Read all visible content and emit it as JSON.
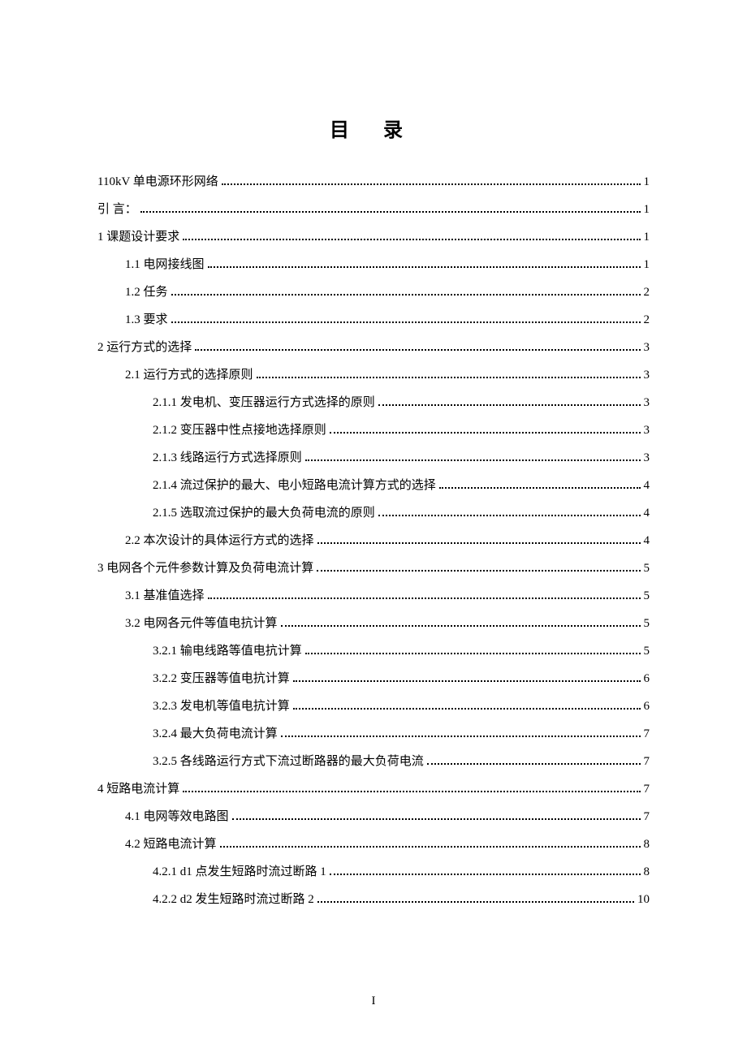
{
  "title": "目 录",
  "page_number": "I",
  "entries": [
    {
      "label": "110kV 单电源环形网络",
      "page": "1",
      "indent": 0
    },
    {
      "label": "引  言：",
      "page": "1",
      "indent": 0
    },
    {
      "label": "1  课题设计要求",
      "page": "1",
      "indent": 0
    },
    {
      "label": "1.1 电网接线图",
      "page": "1",
      "indent": 1
    },
    {
      "label": "1.2  任务",
      "page": "2",
      "indent": 1
    },
    {
      "label": "1.3  要求",
      "page": "2",
      "indent": 1
    },
    {
      "label": "2 运行方式的选择",
      "page": "3",
      "indent": 0
    },
    {
      "label": "2.1  运行方式的选择原则",
      "page": "3",
      "indent": 1
    },
    {
      "label": "2.1.1  发电机、变压器运行方式选择的原则",
      "page": "3",
      "indent": 2
    },
    {
      "label": "2.1.2  变压器中性点接地选择原则",
      "page": "3",
      "indent": 2
    },
    {
      "label": "2.1.3  线路运行方式选择原则",
      "page": "3",
      "indent": 2
    },
    {
      "label": "2.1.4  流过保护的最大、电小短路电流计算方式的选择",
      "page": "4",
      "indent": 2
    },
    {
      "label": "2.1.5  选取流过保护的最大负荷电流的原则",
      "page": "4",
      "indent": 2
    },
    {
      "label": "2.2  本次设计的具体运行方式的选择",
      "page": "4",
      "indent": 1
    },
    {
      "label": "3  电网各个元件参数计算及负荷电流计算",
      "page": "5",
      "indent": 0
    },
    {
      "label": "3.1 基准值选择",
      "page": "5",
      "indent": 1
    },
    {
      "label": "3.2 电网各元件等值电抗计算",
      "page": "5",
      "indent": 1
    },
    {
      "label": "3.2.1 输电线路等值电抗计算",
      "page": "5",
      "indent": 2
    },
    {
      "label": "3.2.2 变压器等值电抗计算",
      "page": "6",
      "indent": 2
    },
    {
      "label": "3.2.3 发电机等值电抗计算",
      "page": "6",
      "indent": 2
    },
    {
      "label": "3.2.4 最大负荷电流计算",
      "page": "7",
      "indent": 2
    },
    {
      "label": "3.2.5  各线路运行方式下流过断路器的最大负荷电流",
      "page": "7",
      "indent": 2
    },
    {
      "label": "4  短路电流计算",
      "page": "7",
      "indent": 0
    },
    {
      "label": "4.1 电网等效电路图",
      "page": "7",
      "indent": 1
    },
    {
      "label": "4.2 短路电流计算",
      "page": "8",
      "indent": 1
    },
    {
      "label": "4.2.1  d1 点发生短路时流过断路 1",
      "page": "8",
      "indent": 2
    },
    {
      "label": "4.2.2  d2 发生短路时流过断路 2",
      "page": "10",
      "indent": 2
    }
  ]
}
